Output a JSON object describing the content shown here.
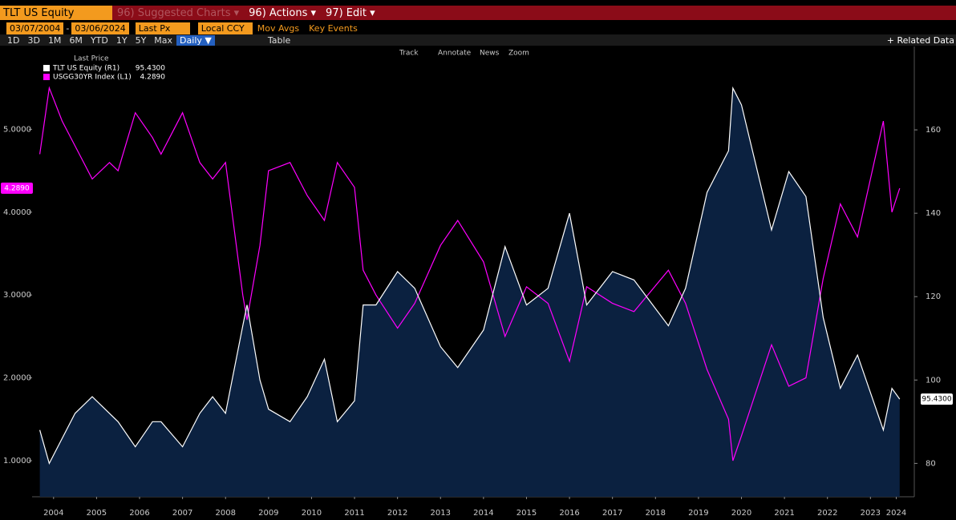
{
  "toolbar": {
    "security": "TLT US Equity",
    "suggested": "96) Suggested Charts ▾",
    "actions": "96) Actions ▾",
    "edit": "97) Edit ▾",
    "start_date": "03/07/2004",
    "date_sep": "-",
    "end_date": "03/06/2024",
    "field": "Last Px",
    "currency": "Local CCY",
    "mov_avgs": "Mov Avgs",
    "key_events": "Key Events",
    "ranges": [
      "1D",
      "3D",
      "1M",
      "6M",
      "YTD",
      "1Y",
      "5Y",
      "Max"
    ],
    "period": "Daily ▼",
    "table": "Table",
    "related": "+ Related Data",
    "tools": [
      "Track",
      "Annotate",
      "News",
      "Zoom"
    ]
  },
  "chart_data": {
    "type": "line",
    "legend_title": "Last Price",
    "x": [
      2004.18,
      2004.4,
      2004.7,
      2005.0,
      2005.4,
      2005.8,
      2006.0,
      2006.4,
      2006.8,
      2007.0,
      2007.5,
      2007.9,
      2008.2,
      2008.5,
      2008.9,
      2009.0,
      2009.3,
      2009.5,
      2010.0,
      2010.4,
      2010.8,
      2011.1,
      2011.5,
      2011.7,
      2012.0,
      2012.5,
      2012.9,
      2013.5,
      2013.9,
      2014.5,
      2015.0,
      2015.5,
      2016.0,
      2016.5,
      2016.9,
      2017.5,
      2018.0,
      2018.8,
      2019.2,
      2019.7,
      2020.2,
      2020.3,
      2020.5,
      2021.2,
      2021.6,
      2022.0,
      2022.4,
      2022.8,
      2023.2,
      2023.8,
      2024.0,
      2024.18
    ],
    "series": [
      {
        "name": "TLT US Equity  (R1)",
        "color": "#ffffff",
        "fill": "#0b2140",
        "axis": "y2",
        "values": [
          88,
          80,
          86,
          92,
          96,
          92,
          90,
          84,
          90,
          90,
          84,
          92,
          96,
          92,
          113,
          118,
          100,
          93,
          90,
          96,
          105,
          90,
          95,
          118,
          118,
          126,
          122,
          108,
          103,
          112,
          132,
          118,
          122,
          140,
          118,
          126,
          124,
          113,
          122,
          145,
          155,
          170,
          166,
          136,
          150,
          144,
          115,
          98,
          106,
          88,
          98,
          95.43
        ],
        "last": {
          "value": 95.43,
          "label": "95.4300"
        }
      },
      {
        "name": "USGG30YR Index  (L1)",
        "color": "#ff00ff",
        "values": [
          4.7,
          5.5,
          5.1,
          4.8,
          4.4,
          4.6,
          4.5,
          5.2,
          4.9,
          4.7,
          5.2,
          4.6,
          4.4,
          4.6,
          3.0,
          2.7,
          3.6,
          4.5,
          4.6,
          4.2,
          3.9,
          4.6,
          4.3,
          3.3,
          3.0,
          2.6,
          2.9,
          3.6,
          3.9,
          3.4,
          2.5,
          3.1,
          2.9,
          2.2,
          3.1,
          2.9,
          2.8,
          3.3,
          2.9,
          2.1,
          1.5,
          1.0,
          1.3,
          2.4,
          1.9,
          2.0,
          3.2,
          4.1,
          3.7,
          5.1,
          4.0,
          4.289
        ],
        "last": {
          "value": 4.289,
          "label": "4.2890"
        }
      }
    ],
    "xlim": [
      2004.0,
      2024.52
    ],
    "xticks": [
      {
        "value": 2004.5,
        "label": "2004"
      },
      {
        "value": 2005.5,
        "label": "2005"
      },
      {
        "value": 2006.5,
        "label": "2006"
      },
      {
        "value": 2007.5,
        "label": "2007"
      },
      {
        "value": 2008.5,
        "label": "2008"
      },
      {
        "value": 2009.5,
        "label": "2009"
      },
      {
        "value": 2010.5,
        "label": "2010"
      },
      {
        "value": 2011.5,
        "label": "2011"
      },
      {
        "value": 2012.5,
        "label": "2012"
      },
      {
        "value": 2013.5,
        "label": "2013"
      },
      {
        "value": 2014.5,
        "label": "2014"
      },
      {
        "value": 2015.5,
        "label": "2015"
      },
      {
        "value": 2016.5,
        "label": "2016"
      },
      {
        "value": 2017.5,
        "label": "2017"
      },
      {
        "value": 2018.5,
        "label": "2018"
      },
      {
        "value": 2019.5,
        "label": "2019"
      },
      {
        "value": 2020.5,
        "label": "2020"
      },
      {
        "value": 2021.5,
        "label": "2021"
      },
      {
        "value": 2022.5,
        "label": "2022"
      },
      {
        "value": 2023.5,
        "label": "2023"
      },
      {
        "value": 2024.1,
        "label": "2024"
      }
    ],
    "ylim": [
      0.565,
      6.0
    ],
    "yticks": [
      {
        "value": 1,
        "label": "1.0000"
      },
      {
        "value": 2,
        "label": "2.0000"
      },
      {
        "value": 3,
        "label": "3.0000"
      },
      {
        "value": 4,
        "label": "4.0000"
      },
      {
        "value": 5,
        "label": "5.0000"
      }
    ],
    "y2lim": [
      72,
      180
    ],
    "y2ticks": [
      80,
      100,
      120,
      140,
      160
    ]
  }
}
